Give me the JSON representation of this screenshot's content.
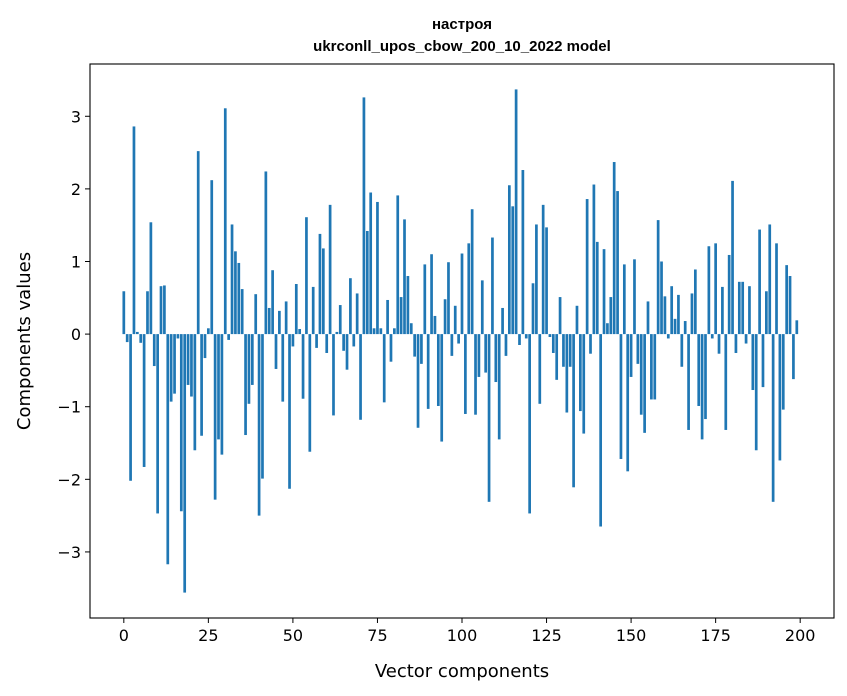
{
  "chart_data": {
    "type": "bar",
    "title_line1": "настроя",
    "title_line2": "ukrconll_upos_cbow_200_10_2022 model",
    "xlabel": "Vector components",
    "ylabel": "Components values",
    "xlim": [
      -10,
      210
    ],
    "ylim": [
      -3.91,
      3.72
    ],
    "xticks": [
      0,
      25,
      50,
      75,
      100,
      125,
      150,
      175,
      200
    ],
    "xtick_labels": [
      "0",
      "25",
      "50",
      "75",
      "100",
      "125",
      "150",
      "175",
      "200"
    ],
    "yticks": [
      -3,
      -2,
      -1,
      0,
      1,
      2,
      3
    ],
    "ytick_labels": [
      "−3",
      "−2",
      "−1",
      "0",
      "1",
      "2",
      "3"
    ],
    "grid": false,
    "bar_color": "#1f77b4",
    "values": [
      0.59,
      -0.11,
      -2.02,
      2.86,
      0.03,
      -0.12,
      -1.83,
      0.59,
      1.54,
      -0.44,
      -2.47,
      0.66,
      0.67,
      -3.17,
      -0.93,
      -0.82,
      -0.06,
      -2.44,
      -3.56,
      -0.7,
      -0.86,
      -1.6,
      2.52,
      -1.4,
      -0.33,
      0.08,
      2.12,
      -2.28,
      -1.45,
      -1.66,
      3.11,
      -0.08,
      1.51,
      1.14,
      0.98,
      0.62,
      -1.39,
      -0.96,
      -0.7,
      0.55,
      -2.5,
      -1.99,
      2.24,
      0.36,
      0.88,
      -0.48,
      0.32,
      -0.93,
      0.45,
      -2.13,
      -0.17,
      0.69,
      0.07,
      -0.89,
      1.61,
      -1.62,
      0.65,
      -0.19,
      1.38,
      1.18,
      -0.26,
      1.78,
      -1.12,
      0.03,
      0.4,
      -0.23,
      -0.49,
      0.77,
      -0.17,
      0.56,
      -1.18,
      3.26,
      1.42,
      1.95,
      0.08,
      1.82,
      0.08,
      -0.94,
      0.47,
      -0.38,
      0.08,
      1.91,
      0.51,
      1.58,
      0.8,
      0.15,
      -0.31,
      -1.29,
      -0.41,
      0.96,
      -1.03,
      1.1,
      0.25,
      -0.99,
      -1.48,
      0.48,
      0.99,
      -0.3,
      0.39,
      -0.13,
      1.11,
      -1.1,
      1.25,
      1.72,
      -1.11,
      -0.59,
      0.74,
      -0.53,
      -2.31,
      1.33,
      -0.66,
      -1.45,
      0.36,
      -0.3,
      2.05,
      1.76,
      3.37,
      -0.15,
      2.26,
      -0.06,
      -2.47,
      0.7,
      1.51,
      -0.96,
      1.78,
      1.47,
      -0.04,
      -0.26,
      -0.63,
      0.51,
      -0.45,
      -1.08,
      -0.45,
      -2.11,
      0.39,
      -1.06,
      -1.37,
      1.86,
      -0.27,
      2.06,
      1.27,
      -2.65,
      1.17,
      0.15,
      0.51,
      2.37,
      1.97,
      -1.72,
      0.96,
      -1.89,
      -0.59,
      1.03,
      -0.41,
      -1.11,
      -1.36,
      0.45,
      -0.9,
      -0.9,
      1.57,
      1.0,
      0.52,
      -0.06,
      0.66,
      0.21,
      0.54,
      -0.45,
      0.18,
      -1.32,
      0.56,
      0.89,
      -0.99,
      -1.45,
      -1.17,
      1.21,
      -0.06,
      1.25,
      -0.27,
      0.65,
      -1.32,
      1.09,
      2.11,
      -0.26,
      0.72,
      0.72,
      -0.13,
      0.66,
      -0.77,
      -1.6,
      1.44,
      -0.73,
      0.59,
      1.51,
      -2.31,
      1.25,
      -1.74,
      -1.04,
      0.95,
      0.8,
      -0.62,
      0.19
    ]
  }
}
